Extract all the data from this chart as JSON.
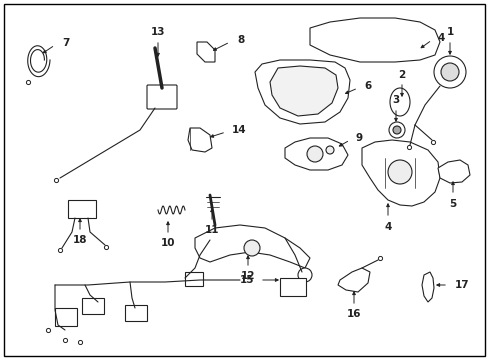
{
  "background_color": "#ffffff",
  "border_color": "#000000",
  "line_color": "#222222",
  "label_color": "#000000",
  "label_fontsize": 7.5,
  "fig_width": 4.89,
  "fig_height": 3.6,
  "dpi": 100
}
